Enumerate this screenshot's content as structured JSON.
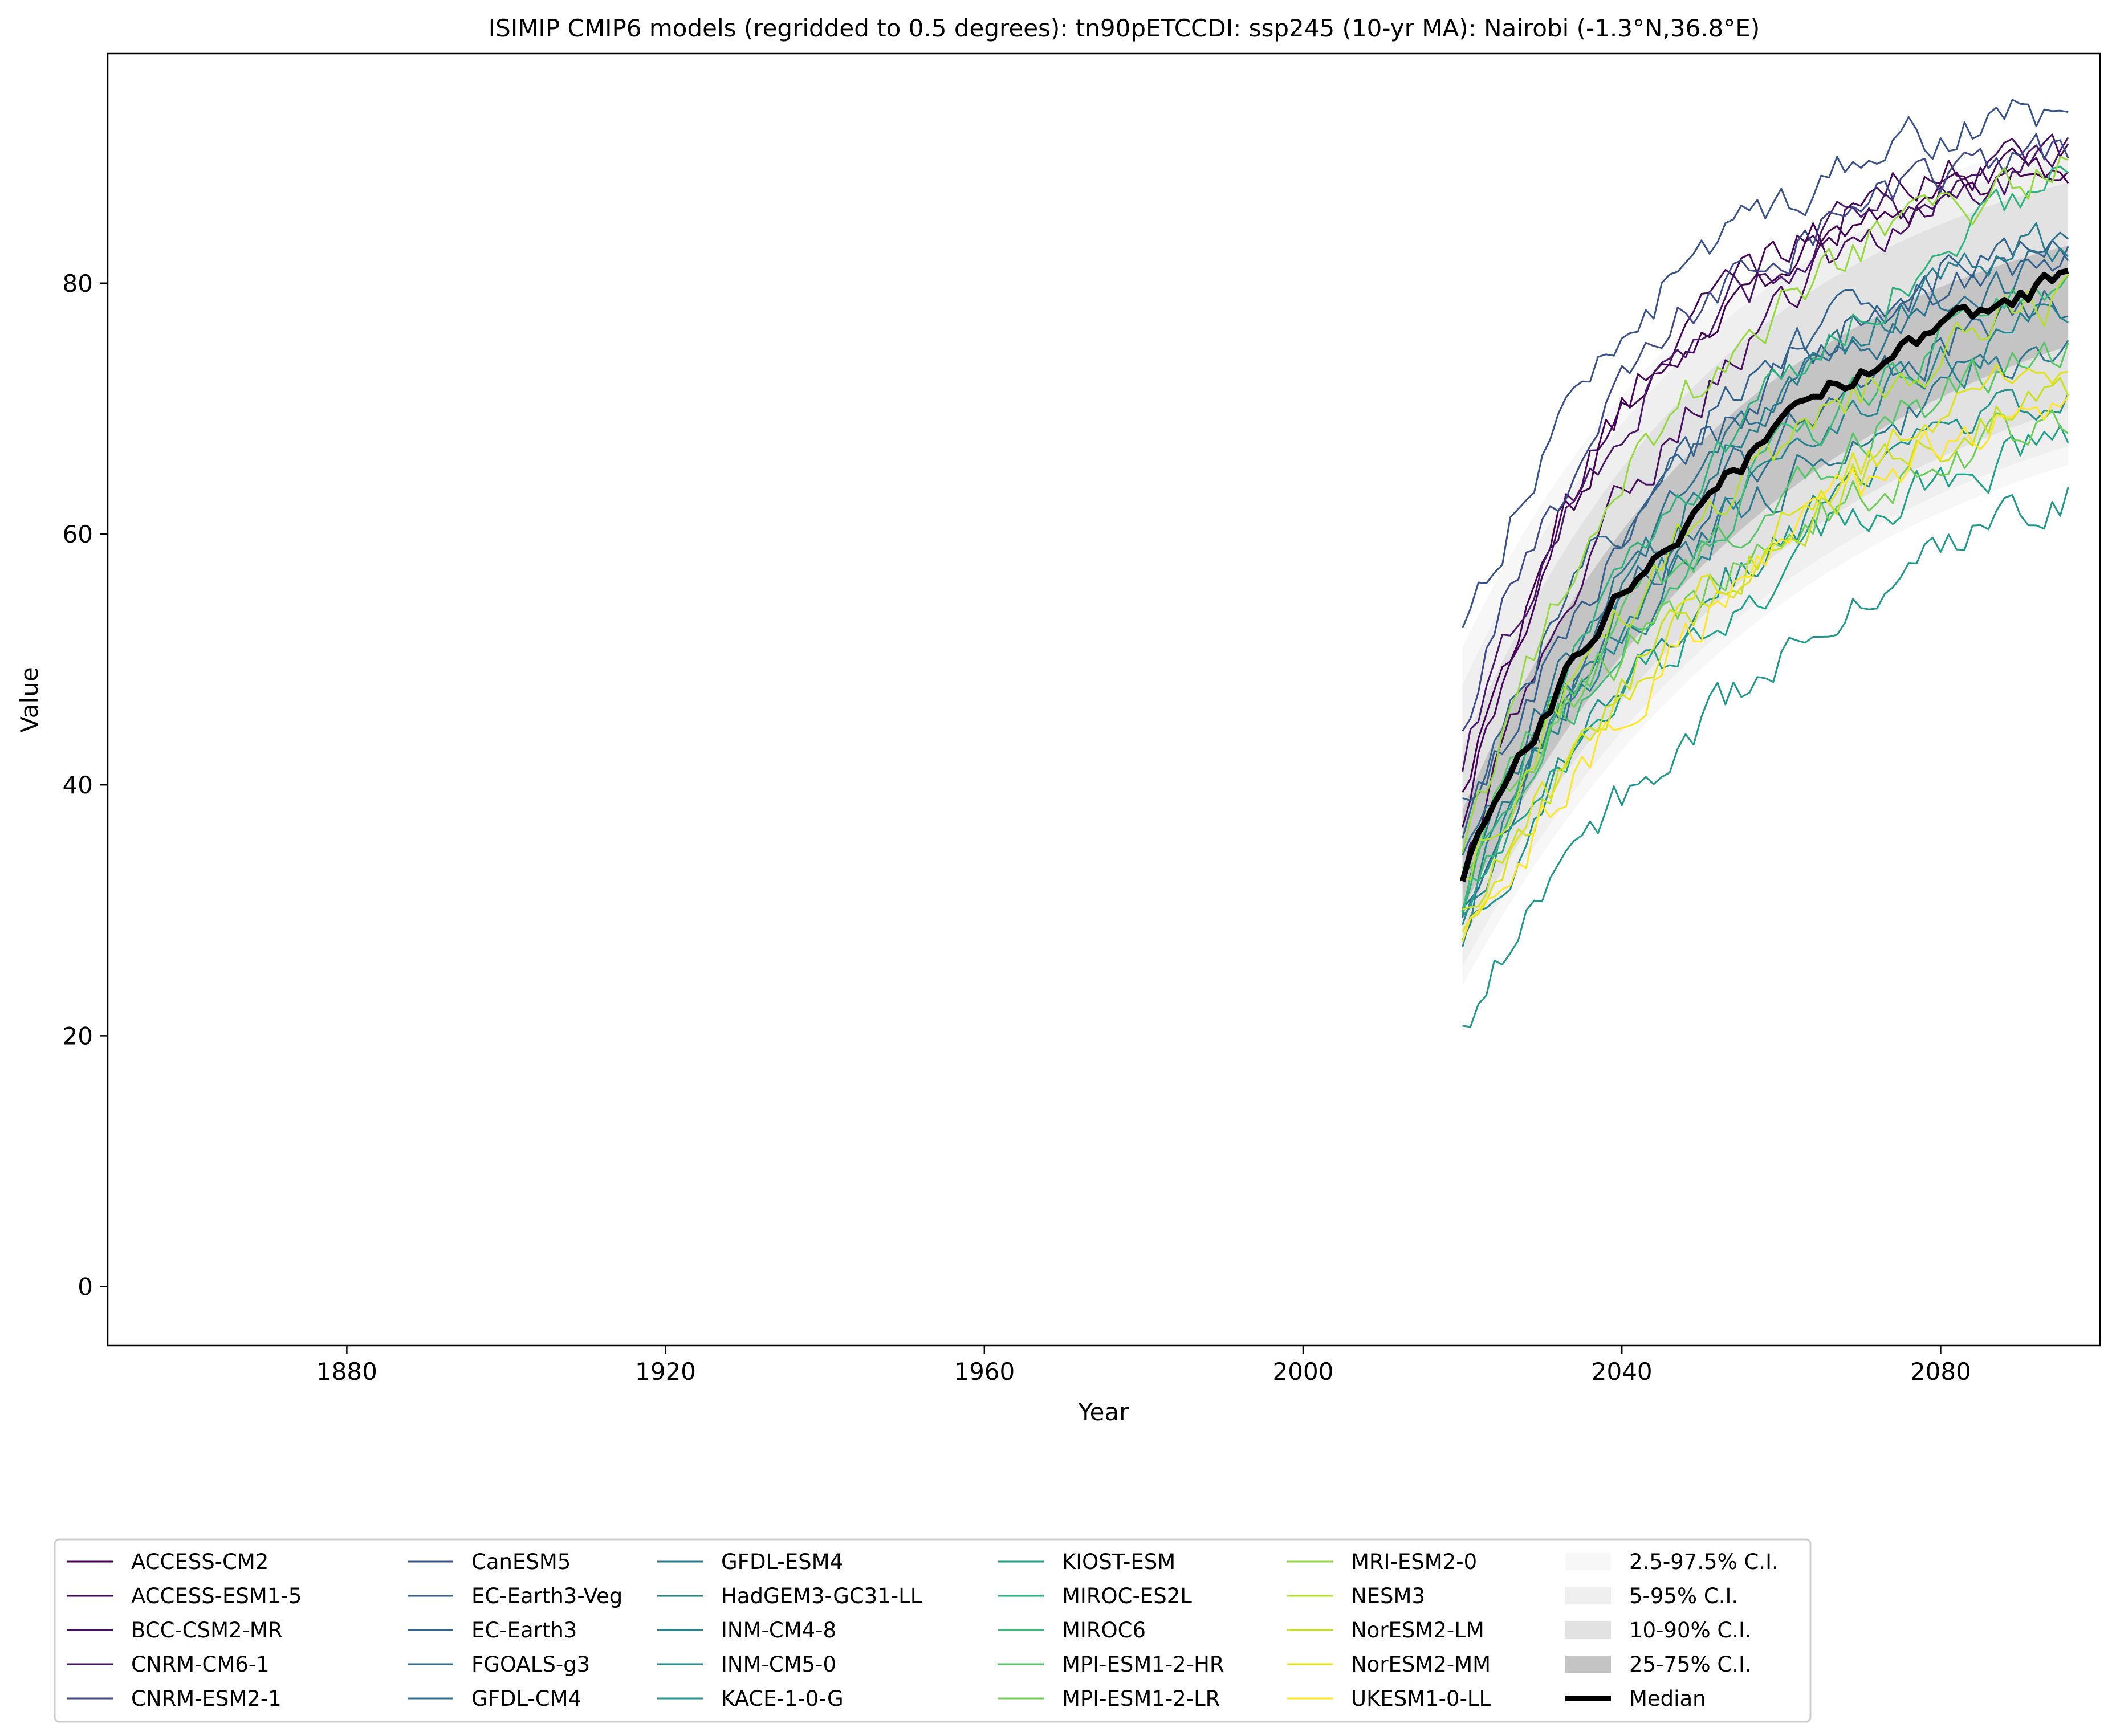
{
  "chart_data": {
    "type": "line",
    "title": "ISIMIP CMIP6 models (regridded to 0.5 degrees): tn90pETCCDI: ssp245 (10-yr MA): Nairobi (-1.3°N,36.8°E)",
    "xlabel": "Year",
    "ylabel": "Value",
    "xlim": [
      1850,
      2100
    ],
    "ylim": [
      -4.7,
      98.3
    ],
    "x_ticks": [
      1880,
      1920,
      1960,
      2000,
      2040,
      2080
    ],
    "y_ticks": [
      0,
      20,
      40,
      60,
      80
    ],
    "legend_position": "bottom",
    "x_start": 2020,
    "x_end": 2096,
    "series": [
      {
        "name": "ACCESS-CM2",
        "color": "#440154",
        "start": 40,
        "end": 89.5,
        "curvature": 3.2
      },
      {
        "name": "ACCESS-ESM1-5",
        "color": "#46085c",
        "start": 37,
        "end": 90.5,
        "curvature": 3.4
      },
      {
        "name": "BCC-CSM2-MR",
        "color": "#471063",
        "start": 33,
        "end": 91,
        "curvature": 2.3
      },
      {
        "name": "CNRM-CM6-1",
        "color": "#481769",
        "start": 41,
        "end": 89.5,
        "curvature": 3.0
      },
      {
        "name": "CNRM-ESM2-1",
        "color": "#3e4a89",
        "start": 44,
        "end": 90,
        "curvature": 3.2
      },
      {
        "name": "CanESM5",
        "color": "#3a528b",
        "start": 52,
        "end": 93.5,
        "curvature": 3.0
      },
      {
        "name": "EC-Earth3-Veg",
        "color": "#355f8d",
        "start": 35,
        "end": 83,
        "curvature": 2.3
      },
      {
        "name": "EC-Earth3",
        "color": "#33638d",
        "start": 38,
        "end": 84,
        "curvature": 2.3
      },
      {
        "name": "FGOALS-g3",
        "color": "#2f6c8e",
        "start": 29,
        "end": 79,
        "curvature": 2.2
      },
      {
        "name": "GFDL-CM4",
        "color": "#2d718e",
        "start": 33,
        "end": 82,
        "curvature": 2.1
      },
      {
        "name": "GFDL-ESM4",
        "color": "#2a788e",
        "start": 31,
        "end": 74,
        "curvature": 2.2
      },
      {
        "name": "HadGEM3-GC31-LL",
        "color": "#277f8e",
        "start": 29,
        "end": 84,
        "curvature": 2.0
      },
      {
        "name": "INM-CM4-8",
        "color": "#25848e",
        "start": 30,
        "end": 77,
        "curvature": 2.0
      },
      {
        "name": "INM-CM5-0",
        "color": "#21918c",
        "start": 28,
        "end": 72,
        "curvature": 1.7
      },
      {
        "name": "KACE-1-0-G",
        "color": "#1f988b",
        "start": 21.5,
        "end": 63.5,
        "curvature": 1.4
      },
      {
        "name": "KIOST-ESM",
        "color": "#1fa088",
        "start": 30,
        "end": 67.5,
        "curvature": 1.8
      },
      {
        "name": "MIROC-ES2L",
        "color": "#2db27d",
        "start": 30,
        "end": 88,
        "curvature": 1.8
      },
      {
        "name": "MIROC6",
        "color": "#3bbb75",
        "start": 30,
        "end": 80,
        "curvature": 1.7
      },
      {
        "name": "MPI-ESM1-2-HR",
        "color": "#56c667",
        "start": 33,
        "end": 74,
        "curvature": 2.0
      },
      {
        "name": "MPI-ESM1-2-LR",
        "color": "#6ece58",
        "start": 33,
        "end": 69,
        "curvature": 2.0
      },
      {
        "name": "MRI-ESM2-0",
        "color": "#95d840",
        "start": 34,
        "end": 89,
        "curvature": 2.6
      },
      {
        "name": "NESM3",
        "color": "#b5de2b",
        "start": 32,
        "end": 79,
        "curvature": 1.9
      },
      {
        "name": "NorESM2-LM",
        "color": "#c8e020",
        "start": 29,
        "end": 72,
        "curvature": 1.7
      },
      {
        "name": "NorESM2-MM",
        "color": "#dfe318",
        "start": 27,
        "end": 74,
        "curvature": 1.6
      },
      {
        "name": "UKESM1-0-LL",
        "color": "#fde725",
        "start": 26,
        "end": 71,
        "curvature": 1.7
      }
    ],
    "bands": [
      {
        "name": "2.5-97.5% C.I.",
        "color": "#f7f7f7",
        "lower_start": 24,
        "lower_end": 65.5,
        "upper_start": 51,
        "upper_end": 91.5
      },
      {
        "name": "5-95% C.I.",
        "color": "#efefef",
        "lower_start": 25.5,
        "lower_end": 67,
        "upper_start": 48,
        "upper_end": 90
      },
      {
        "name": "10-90% C.I.",
        "color": "#e2e2e2",
        "lower_start": 27.5,
        "lower_end": 70,
        "upper_start": 43,
        "upper_end": 88
      },
      {
        "name": "25-75% C.I.",
        "color": "#c4c4c4",
        "lower_start": 30,
        "lower_end": 75,
        "upper_start": 38,
        "upper_end": 83
      }
    ],
    "median": {
      "name": "Median",
      "color": "#000000",
      "start": 33,
      "end": 80.5,
      "curvature": 1.9
    }
  }
}
